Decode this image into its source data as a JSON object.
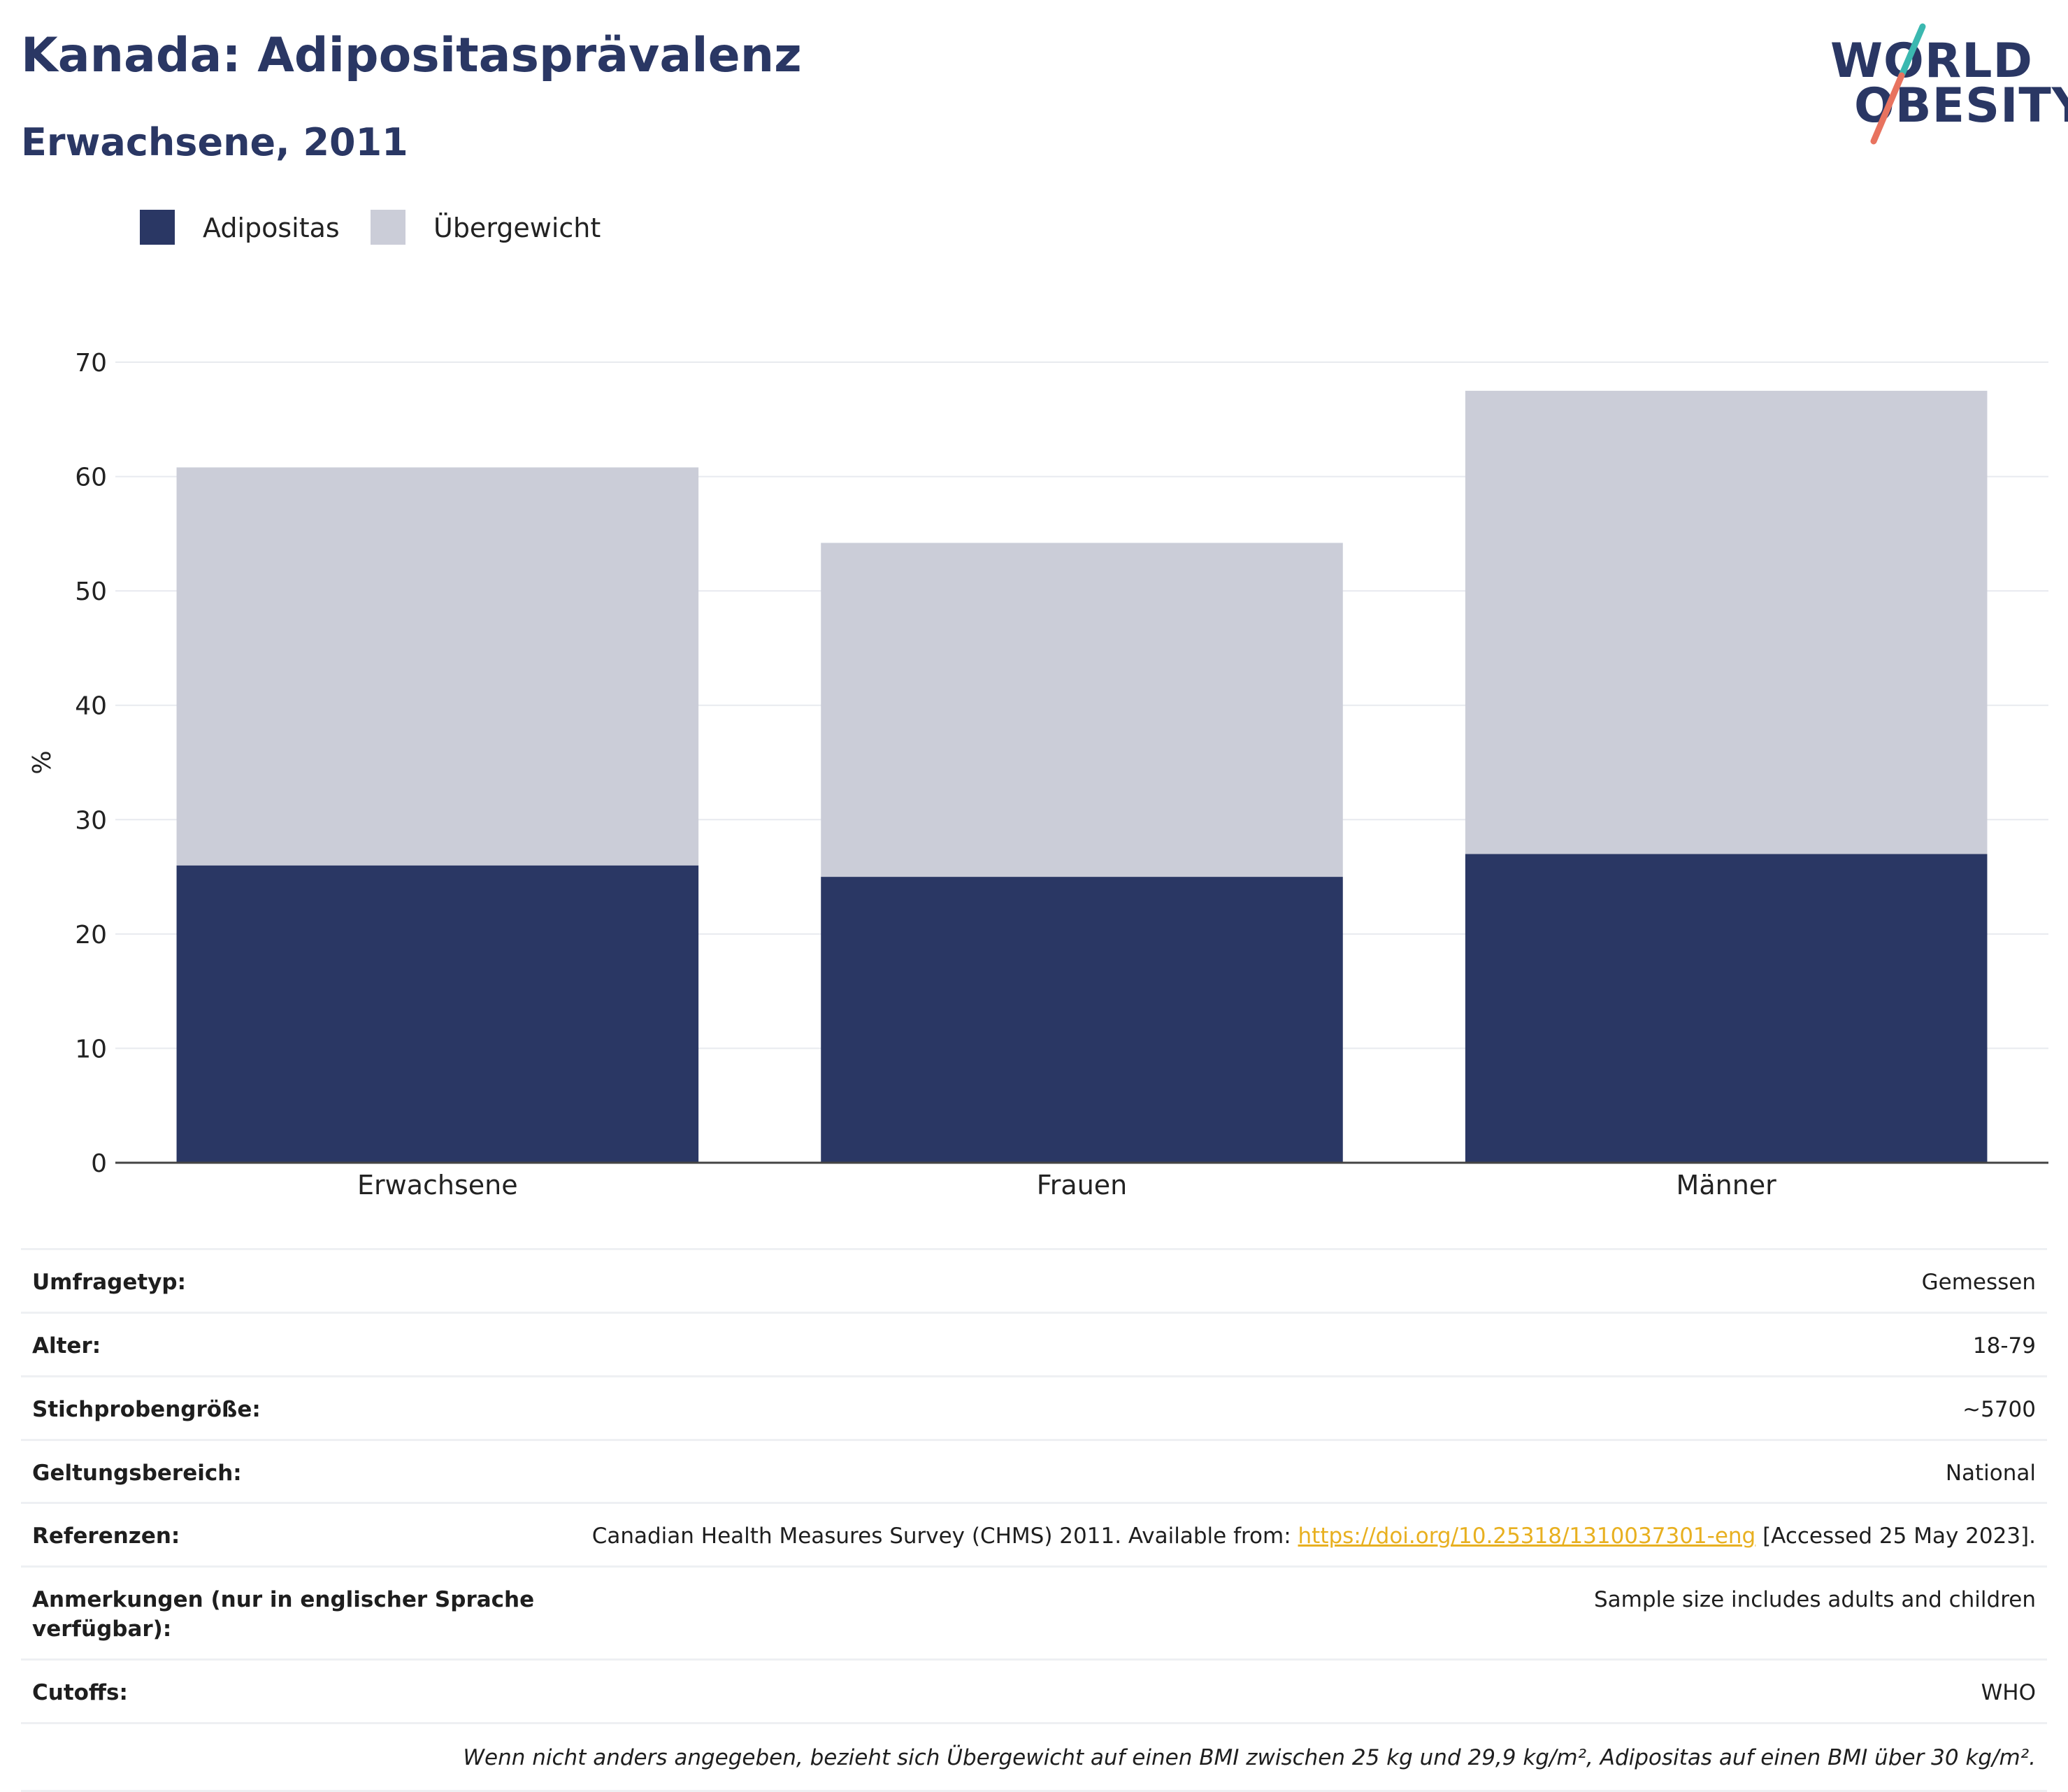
{
  "header": {
    "title": "Kanada: Adipositasprävalenz",
    "subtitle": "Erwachsene, 2011"
  },
  "logo": {
    "line1": "WORLD",
    "line2": "OBESITY",
    "accent_teal": "#3bb8b0",
    "accent_coral": "#e8735f"
  },
  "legend": [
    {
      "label": "Adipositas",
      "color": "#2a3764"
    },
    {
      "label": "Übergewicht",
      "color": "#cbcdd8"
    }
  ],
  "chart_data": {
    "type": "bar",
    "stacked": true,
    "categories": [
      "Erwachsene",
      "Frauen",
      "Männer"
    ],
    "series": [
      {
        "name": "Adipositas",
        "values": [
          26,
          25,
          27
        ],
        "color": "#2a3764"
      },
      {
        "name": "Übergewicht",
        "values": [
          34.8,
          29.2,
          40.5
        ],
        "color": "#cbcdd8"
      }
    ],
    "ylabel": "%",
    "ylim": [
      0,
      70
    ],
    "yticks": [
      0,
      10,
      20,
      30,
      40,
      50,
      60,
      70
    ],
    "grid": true,
    "legend_position": "top-left"
  },
  "details": [
    {
      "label": "Umfragetyp:",
      "value": "Gemessen"
    },
    {
      "label": "Alter:",
      "value": "18-79"
    },
    {
      "label": "Stichprobengröße:",
      "value": "~5700"
    },
    {
      "label": "Geltungsbereich:",
      "value": "National"
    },
    {
      "label": "Referenzen:",
      "value_prefix": "Canadian Health Measures Survey (CHMS) 2011. Available from: ",
      "link": "https://doi.org/10.25318/1310037301-eng",
      "value_suffix": " [Accessed 25 May 2023]."
    },
    {
      "label": "Anmerkungen (nur in englischer Sprache verfügbar):",
      "value": "Sample size includes adults and children"
    },
    {
      "label": "Cutoffs:",
      "value": "WHO"
    }
  ],
  "footnote": "Wenn nicht anders angegeben, bezieht sich Übergewicht auf einen BMI zwischen 25 kg und 29,9 kg/m², Adipositas auf einen BMI über 30 kg/m²."
}
